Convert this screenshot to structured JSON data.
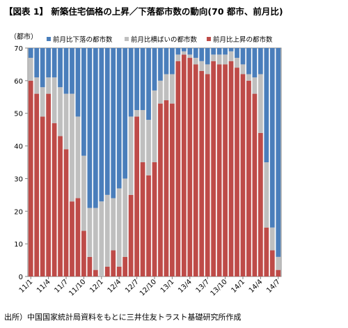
{
  "title": "【図表 1】 新築住宅価格の上昇／下落都市数の動向(70 都市、前月比)",
  "unit_label": "（都市）",
  "source": "出所）中国国家統計局資料をもとに三井住友トラスト基礎研究所作成",
  "colors": {
    "down": "#4a7ebb",
    "flat": "#bfbfbf",
    "up": "#be4b48"
  },
  "chart_data": {
    "type": "bar",
    "stacked": true,
    "ylim": [
      0,
      70
    ],
    "yticks": [
      0,
      10,
      20,
      30,
      40,
      50,
      60,
      70
    ],
    "legend_position": "top",
    "categories": [
      "11/1",
      "11/2",
      "11/3",
      "11/4",
      "11/5",
      "11/6",
      "11/7",
      "11/8",
      "11/9",
      "11/10",
      "11/11",
      "11/12",
      "12/1",
      "12/2",
      "12/3",
      "12/4",
      "12/5",
      "12/6",
      "12/7",
      "12/8",
      "12/9",
      "12/10",
      "12/11",
      "12/12",
      "13/1",
      "13/2",
      "13/3",
      "13/4",
      "13/5",
      "13/6",
      "13/7",
      "13/8",
      "13/9",
      "13/10",
      "13/11",
      "13/12",
      "14/1",
      "14/2",
      "14/3",
      "14/4",
      "14/5",
      "14/6",
      "14/7"
    ],
    "x_tick_labels": [
      "11/1",
      "11/4",
      "11/7",
      "11/10",
      "12/1",
      "12/4",
      "12/7",
      "12/10",
      "13/1",
      "13/4",
      "13/7",
      "13/10",
      "14/1",
      "14/4",
      "14/7"
    ],
    "series": [
      {
        "name": "前月比上昇の都市数",
        "values": [
          60,
          56,
          49,
          56,
          47,
          43,
          39,
          23,
          24,
          14,
          6,
          2,
          0,
          3,
          8,
          3,
          6,
          25,
          49,
          35,
          31,
          35,
          53,
          54,
          53,
          66,
          68,
          67,
          65,
          63,
          62,
          66,
          65,
          65,
          66,
          64,
          62,
          60,
          56,
          44,
          15,
          8,
          2
        ]
      },
      {
        "name": "前月比横ばいの都市数",
        "values": [
          7,
          5,
          9,
          5,
          14,
          15,
          17,
          33,
          25,
          23,
          15,
          19,
          23,
          22,
          16,
          24,
          24,
          24,
          2,
          16,
          17,
          22,
          7,
          8,
          9,
          2,
          1,
          1,
          2,
          3,
          3,
          2,
          3,
          3,
          3,
          3,
          3,
          2,
          5,
          18,
          20,
          7,
          4
        ]
      },
      {
        "name": "前月比下落の都市数",
        "values": [
          3,
          9,
          12,
          9,
          9,
          12,
          14,
          14,
          21,
          33,
          49,
          49,
          47,
          45,
          46,
          43,
          40,
          21,
          19,
          19,
          22,
          13,
          10,
          8,
          8,
          2,
          1,
          2,
          3,
          4,
          5,
          2,
          2,
          2,
          1,
          3,
          5,
          8,
          9,
          8,
          35,
          55,
          64
        ]
      }
    ]
  }
}
